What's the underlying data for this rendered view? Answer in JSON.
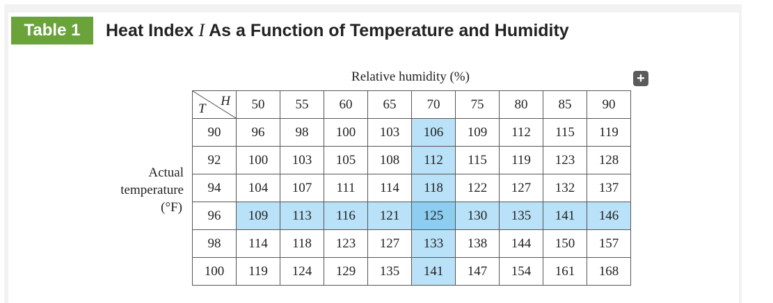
{
  "header": {
    "tag": "Table 1",
    "title_prefix": "Heat Index ",
    "title_var": "I",
    "title_suffix": " As a Function of Temperature and Humidity"
  },
  "toolbar": {
    "expand_icon": "plus-icon",
    "expand_glyph": "+"
  },
  "table": {
    "column_axis_label": "Relative humidity (%)",
    "row_axis_label_lines": [
      "Actual",
      "temperature",
      "(°F)"
    ],
    "corner_col_var": "H",
    "corner_row_var": "T",
    "humidity": [
      "50",
      "55",
      "60",
      "65",
      "70",
      "75",
      "80",
      "85",
      "90"
    ],
    "rows": [
      {
        "temp": "90",
        "values": [
          "96",
          "98",
          "100",
          "103",
          "106",
          "109",
          "112",
          "115",
          "119"
        ]
      },
      {
        "temp": "92",
        "values": [
          "100",
          "103",
          "105",
          "108",
          "112",
          "115",
          "119",
          "123",
          "128"
        ]
      },
      {
        "temp": "94",
        "values": [
          "104",
          "107",
          "111",
          "114",
          "118",
          "122",
          "127",
          "132",
          "137"
        ]
      },
      {
        "temp": "96",
        "values": [
          "109",
          "113",
          "116",
          "121",
          "125",
          "130",
          "135",
          "141",
          "146"
        ]
      },
      {
        "temp": "98",
        "values": [
          "114",
          "118",
          "123",
          "127",
          "133",
          "138",
          "144",
          "150",
          "157"
        ]
      },
      {
        "temp": "100",
        "values": [
          "119",
          "124",
          "129",
          "135",
          "141",
          "147",
          "154",
          "161",
          "168"
        ]
      }
    ],
    "highlight": {
      "humidity": "70",
      "temp": "96",
      "color": "#b9e1f7",
      "cross_color": "#8ccdf0"
    }
  },
  "colors": {
    "tag_bg": "#6aa33a",
    "button_bg": "#5b5b5b"
  }
}
